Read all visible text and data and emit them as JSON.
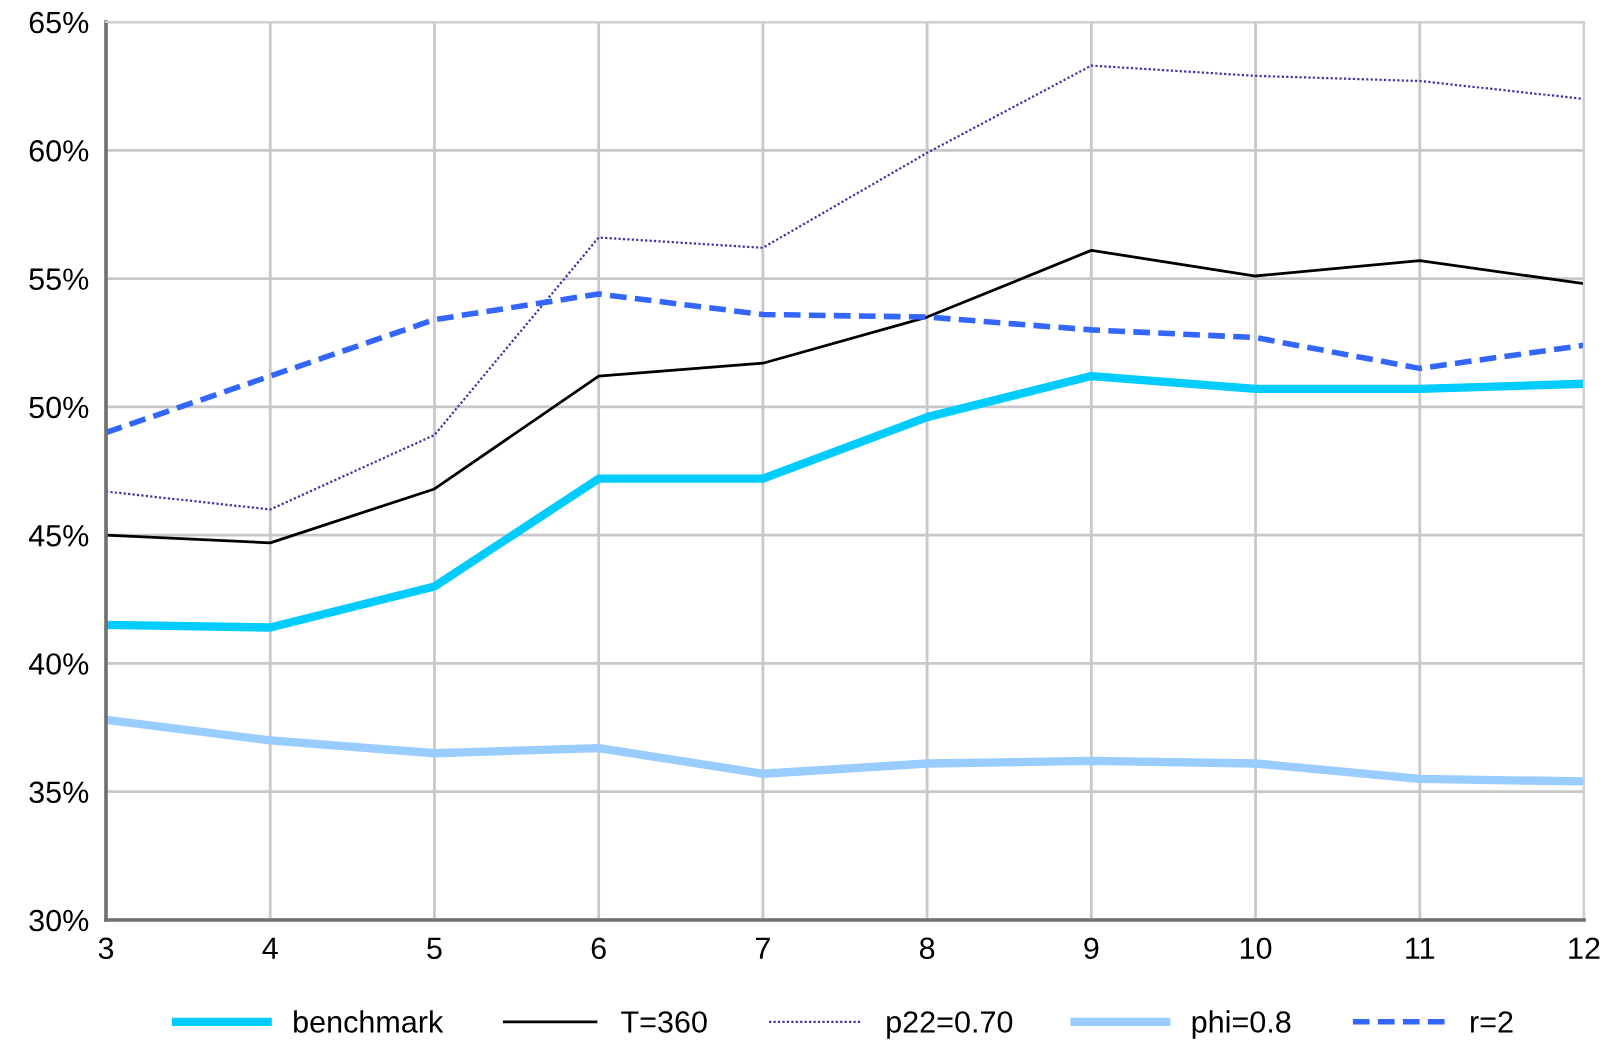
{
  "chart_data": {
    "type": "line",
    "x": [
      3,
      4,
      5,
      6,
      7,
      8,
      9,
      10,
      11,
      12
    ],
    "series": [
      {
        "name": "benchmark",
        "color": "#00ccff",
        "line_style": "solid",
        "values": [
          41.5,
          41.4,
          43.0,
          47.2,
          47.2,
          49.6,
          51.2,
          50.7,
          50.7,
          50.9
        ]
      },
      {
        "name": "T=360",
        "color": "#000000",
        "line_style": "solid",
        "values": [
          45.0,
          44.7,
          46.8,
          51.2,
          51.7,
          53.5,
          56.1,
          55.1,
          55.7,
          54.8
        ]
      },
      {
        "name": "p22=0.70",
        "color": "#3b35a8",
        "line_style": "dotted",
        "values": [
          46.7,
          46.0,
          48.9,
          56.6,
          56.2,
          59.9,
          63.3,
          62.9,
          62.7,
          62.0
        ]
      },
      {
        "name": "phi=0.8",
        "color": "#99ccff",
        "line_style": "solid",
        "values": [
          37.8,
          37.0,
          36.5,
          36.7,
          35.7,
          36.1,
          36.2,
          36.1,
          35.5,
          35.4
        ]
      },
      {
        "name": "r=2",
        "color": "#3366ff",
        "line_style": "dashed",
        "values": [
          49.0,
          51.2,
          53.4,
          54.4,
          53.6,
          53.5,
          53.0,
          52.7,
          51.5,
          52.4
        ]
      }
    ],
    "xlim": [
      3,
      12
    ],
    "xticks": [
      3,
      4,
      5,
      6,
      7,
      8,
      9,
      10,
      11,
      12
    ],
    "ylim": [
      30,
      65
    ],
    "yticks": [
      {
        "value": 30,
        "label": "30%"
      },
      {
        "value": 35,
        "label": "35%"
      },
      {
        "value": 40,
        "label": "40%"
      },
      {
        "value": 45,
        "label": "45%"
      },
      {
        "value": 50,
        "label": "50%"
      },
      {
        "value": 55,
        "label": "55%"
      },
      {
        "value": 60,
        "label": "60%"
      },
      {
        "value": 65,
        "label": "65%"
      }
    ],
    "grid": true,
    "legend": "bottom",
    "marker": "none"
  }
}
